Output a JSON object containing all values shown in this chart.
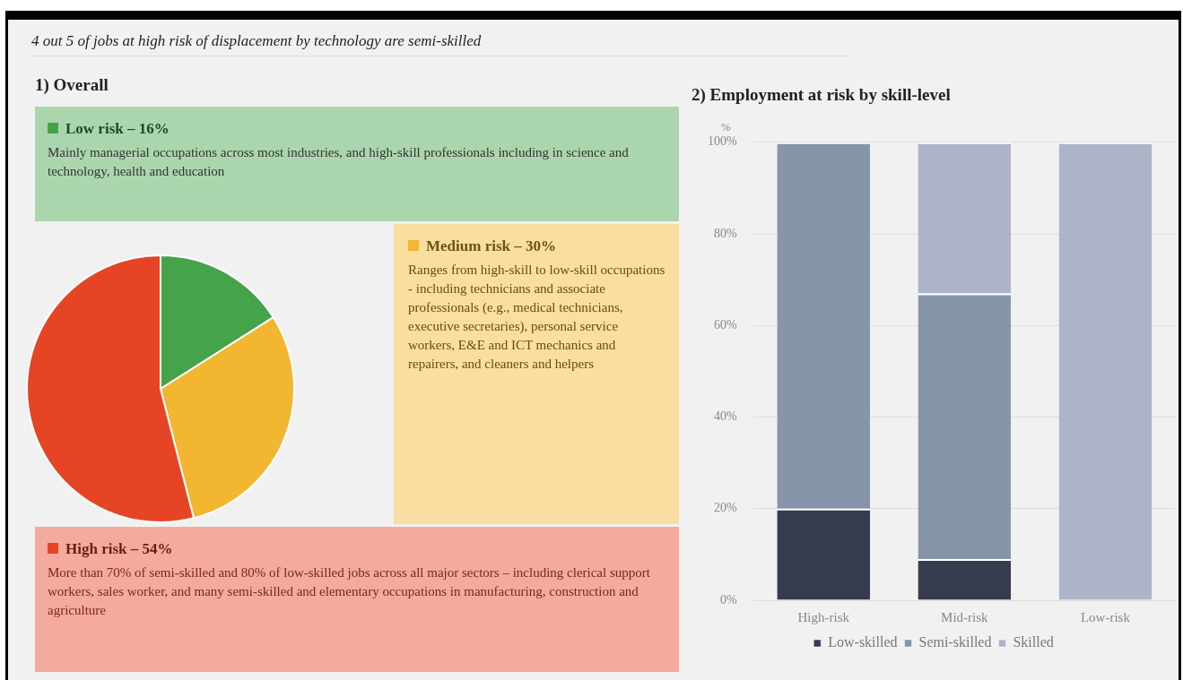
{
  "chart_data": [
    {
      "type": "pie",
      "subtitle": "4 out 5 of jobs at high risk of displacement by technology are semi-skilled",
      "title": "1) Overall",
      "categories": [
        "Low risk – 16%",
        "Medium risk – 30%",
        "High risk – 54%"
      ],
      "values": [
        16,
        30,
        54
      ],
      "colors": [
        "#45a449",
        "#f2b631",
        "#e64525"
      ],
      "legend": "right",
      "annotations": [
        "Mainly managerial occupations across most industries, and high-skill professionals including in science and technology, health and education",
        "Ranges from high-skill to low-skill occupations - including technicians and associate professionals (e.g., medical technicians, executive secretaries), personal service workers, E&E and ICT mechanics and repairers, and cleaners and helpers",
        "More than 70% of semi-skilled and 80% of low-skilled jobs across all major sectors – including clerical support workers, sales worker, and many semi-skilled and elementary occupations in manufacturing, construction and agriculture"
      ]
    },
    {
      "type": "bar",
      "title": "2) Employment at risk by skill-level",
      "ylabel": "%",
      "stacked": true,
      "categories": [
        "High-risk",
        "Mid-risk",
        "Low-risk"
      ],
      "series": [
        {
          "name": "Low-skilled",
          "color": "#363c4d",
          "values": [
            20,
            9,
            0
          ]
        },
        {
          "name": "Semi-skilled",
          "color": "#8795ab",
          "values": [
            80,
            58,
            0
          ]
        },
        {
          "name": "Skilled",
          "color": "#aeb4c8",
          "values": [
            0,
            33,
            100
          ]
        }
      ],
      "ylim": [
        0,
        100
      ],
      "yticks": [
        {
          "value": 0,
          "label": "0%"
        },
        {
          "value": 20,
          "label": "20%"
        },
        {
          "value": 40,
          "label": "40%"
        },
        {
          "value": 60,
          "label": "60%"
        },
        {
          "value": 80,
          "label": "80%"
        },
        {
          "value": 100,
          "label": "100%"
        }
      ],
      "grid": "y",
      "legend": "bottom"
    }
  ]
}
